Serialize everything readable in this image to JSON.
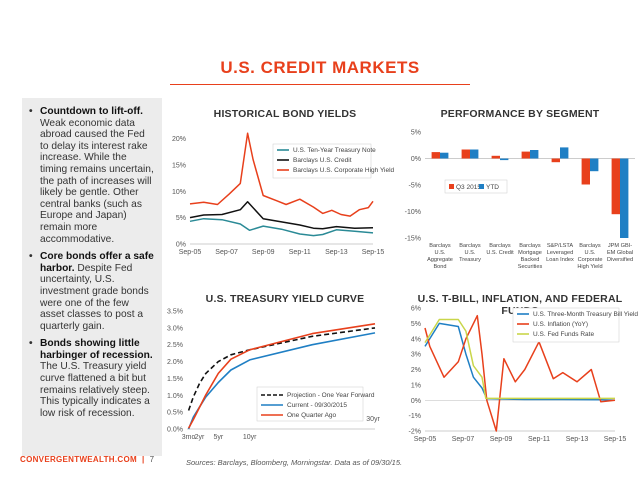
{
  "page": {
    "title": "U.S. CREDIT MARKETS",
    "brand": "CONVERGENTWEALTH.COM",
    "page_number": "7",
    "sources": "Sources: Barclays, Bloomberg, Morningstar. Data as of 09/30/15."
  },
  "sidebar": {
    "items": [
      {
        "heading": "Countdown to lift-off.",
        "body": "Weak economic data abroad caused the Fed to delay its interest rake increase. While the timing remains uncertain, the path of increases will likely be gentle. Other central banks (such as Europe and Japan) remain more accommodative."
      },
      {
        "heading": "Core bonds offer a safe harbor.",
        "body": "Despite Fed uncertainty, U.S. investment grade bonds were one of the few asset classes to post a quarterly gain."
      },
      {
        "heading": "Bonds showing little harbinger of recession.",
        "body": "The U.S. Treasury yield curve flattened a bit but remains relatively steep. This typically indicates a low risk of recession."
      }
    ]
  },
  "colors": {
    "accent": "#e8401c",
    "blue": "#1f7fc4",
    "red": "#e8401c",
    "green": "#c9d64a",
    "black": "#111111",
    "teal": "#2a8a96"
  },
  "chart_data": [
    {
      "type": "line",
      "title": "HISTORICAL BOND YIELDS",
      "x_ticks": [
        "Sep-05",
        "Sep-07",
        "Sep-09",
        "Sep-11",
        "Sep-13",
        "Sep-15"
      ],
      "y_ticks": [
        "0%",
        "5%",
        "10%",
        "15%",
        "20%"
      ],
      "ylim": [
        0,
        22
      ],
      "series": [
        {
          "name": "U.S. Ten-Year Treasury Note",
          "color": "#2a8a96",
          "x": [
            2005.75,
            2006.5,
            2007.5,
            2008.5,
            2009.0,
            2009.75,
            2010.75,
            2011.75,
            2012.5,
            2013.0,
            2013.75,
            2014.75,
            2015.75
          ],
          "values": [
            4.3,
            4.8,
            4.6,
            3.8,
            2.6,
            3.4,
            2.8,
            1.9,
            1.6,
            1.8,
            2.7,
            2.4,
            2.1
          ]
        },
        {
          "name": "Barclays U.S. Credit",
          "color": "#111111",
          "x": [
            2005.75,
            2006.5,
            2007.5,
            2008.5,
            2008.9,
            2009.75,
            2010.75,
            2011.75,
            2012.5,
            2013.0,
            2013.75,
            2014.75,
            2015.75
          ],
          "values": [
            5.0,
            5.5,
            5.6,
            6.5,
            8.0,
            4.8,
            4.2,
            3.6,
            3.0,
            2.9,
            3.3,
            3.0,
            3.1
          ]
        },
        {
          "name": "Barclays U.S. Corporate High Yield",
          "color": "#e8401c",
          "x": [
            2005.75,
            2006.5,
            2007.25,
            2007.9,
            2008.5,
            2008.9,
            2009.2,
            2009.75,
            2010.5,
            2011.0,
            2011.75,
            2012.5,
            2013.0,
            2013.5,
            2014.0,
            2014.5,
            2015.0,
            2015.5,
            2015.75
          ],
          "values": [
            7.6,
            7.9,
            7.5,
            9.5,
            11.5,
            21.0,
            16.0,
            9.2,
            8.2,
            7.5,
            8.5,
            7.0,
            5.8,
            6.4,
            5.6,
            5.3,
            6.5,
            6.9,
            8.1
          ]
        }
      ]
    },
    {
      "type": "bar",
      "title": "PERFORMANCE BY SEGMENT",
      "categories": [
        "Barclays U.S. Aggregate Bond",
        "Barclays U.S. Treasury",
        "Barclays U.S. Credit",
        "Barclays Mortgage Backed Securities",
        "S&P/LSTA Leveraged Loan Index",
        "Barclays U.S. Corporate High Yield",
        "JPM GBI-EM Global Diversified"
      ],
      "category_lines": [
        [
          "Barclays",
          "U.S.",
          "Aggregate",
          "Bond"
        ],
        [
          "Barclays",
          "U.S.",
          "Treasury"
        ],
        [
          "Barclays",
          "U.S. Credit"
        ],
        [
          "Barclays",
          "Mortgage",
          "Backed",
          "Securities"
        ],
        [
          "S&P/LSTA",
          "Leveraged",
          "Loan Index"
        ],
        [
          "Barclays",
          "U.S.",
          "Corporate",
          "High Yield"
        ],
        [
          "JPM GBI-",
          "EM Global",
          "Diversified"
        ]
      ],
      "y_ticks": [
        "5%",
        "0%",
        "-5%",
        "-10%",
        "-15%"
      ],
      "ylim": [
        -15,
        5
      ],
      "series": [
        {
          "name": "Q3 2015",
          "color": "#e8401c",
          "values": [
            1.2,
            1.7,
            0.5,
            1.3,
            -0.7,
            -4.9,
            -10.5
          ]
        },
        {
          "name": "YTD",
          "color": "#1f7fc4",
          "values": [
            1.1,
            1.7,
            -0.3,
            1.6,
            2.1,
            -2.4,
            -15.0
          ]
        }
      ]
    },
    {
      "type": "line",
      "title": "U.S. TREASURY YIELD CURVE",
      "x_ticks": [
        "3mo",
        "2yr",
        "5yr",
        "10yr"
      ],
      "x_tick_pos": [
        0.25,
        2,
        5,
        10
      ],
      "x_end_label": "30yr",
      "y_ticks": [
        "0.0%",
        "0.5%",
        "1.0%",
        "1.5%",
        "2.0%",
        "2.5%",
        "3.0%",
        "3.5%"
      ],
      "ylim": [
        0,
        3.5
      ],
      "series": [
        {
          "name": "Projection - One Year Forward",
          "color": "#111111",
          "dashed": true,
          "x": [
            0.25,
            1,
            2,
            3,
            5,
            7,
            10,
            20,
            30
          ],
          "values": [
            0.55,
            0.95,
            1.35,
            1.65,
            2.0,
            2.2,
            2.35,
            2.75,
            3.0
          ]
        },
        {
          "name": "Current - 09/30/2015",
          "color": "#1f7fc4",
          "x": [
            0.25,
            1,
            2,
            3,
            5,
            7,
            10,
            20,
            30
          ],
          "values": [
            0.0,
            0.35,
            0.65,
            0.95,
            1.38,
            1.75,
            2.05,
            2.5,
            2.85
          ]
        },
        {
          "name": "One Quarter Ago",
          "color": "#e8401c",
          "x": [
            0.25,
            1,
            2,
            3,
            5,
            7,
            10,
            20,
            30
          ],
          "values": [
            0.02,
            0.28,
            0.64,
            1.01,
            1.65,
            2.07,
            2.35,
            2.83,
            3.12
          ]
        }
      ]
    },
    {
      "type": "line",
      "title": "U.S. T-BILL, INFLATION, AND FEDERAL FUNDS",
      "x_ticks": [
        "Sep-05",
        "Sep-07",
        "Sep-09",
        "Sep-11",
        "Sep-13",
        "Sep-15"
      ],
      "y_ticks": [
        "6%",
        "5%",
        "4%",
        "3%",
        "2%",
        "1%",
        "0%",
        "-1%",
        "-2%"
      ],
      "ylim": [
        -2,
        6
      ],
      "series": [
        {
          "name": "U.S. Three-Month Treasury Bill Yield",
          "color": "#1f7fc4",
          "x": [
            2005.75,
            2006.5,
            2007.5,
            2007.9,
            2008.3,
            2008.75,
            2009.0,
            2011.0,
            2013.0,
            2015.0,
            2015.75
          ],
          "values": [
            3.5,
            5.0,
            4.8,
            3.0,
            1.5,
            0.8,
            0.1,
            0.05,
            0.05,
            0.03,
            0.0
          ]
        },
        {
          "name": "U.S. Inflation (YoY)",
          "color": "#e8401c",
          "x": [
            2005.75,
            2006.0,
            2006.75,
            2007.5,
            2007.9,
            2008.5,
            2008.75,
            2009.0,
            2009.5,
            2009.9,
            2010.5,
            2011.0,
            2011.75,
            2012.5,
            2013.0,
            2013.75,
            2014.5,
            2015.0,
            2015.75
          ],
          "values": [
            4.7,
            3.5,
            1.5,
            2.5,
            4.0,
            5.5,
            3.0,
            0.0,
            -2.0,
            2.7,
            1.2,
            2.0,
            3.8,
            1.4,
            1.8,
            1.2,
            2.0,
            -0.1,
            0.0
          ]
        },
        {
          "name": "U.S. Fed Funds Rate",
          "color": "#c9d64a",
          "x": [
            2005.75,
            2006.5,
            2007.5,
            2007.9,
            2008.3,
            2008.75,
            2008.95,
            2015.75
          ],
          "values": [
            3.75,
            5.25,
            5.25,
            4.5,
            2.25,
            1.5,
            0.12,
            0.12
          ]
        }
      ]
    }
  ]
}
